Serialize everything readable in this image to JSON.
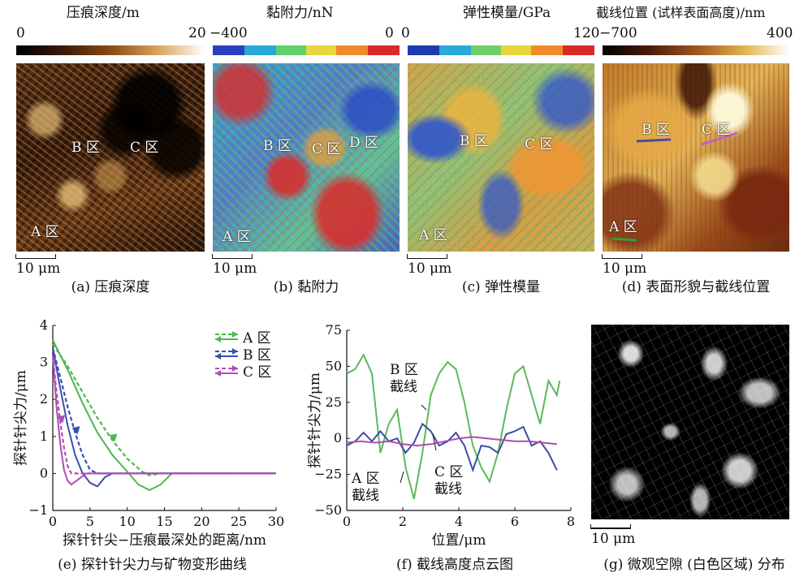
{
  "panel_a": {
    "bar_title": "压痕深度/m",
    "min": "0",
    "max": "20",
    "label_a": "A 区",
    "label_b": "B 区",
    "label_c": "C 区",
    "scale": "10 μm",
    "caption": "(a) 压痕深度",
    "colors": [
      "#000000",
      "#3a1a08",
      "#8a4a14",
      "#d9a35a",
      "#ffffff"
    ]
  },
  "panel_b": {
    "bar_title": "黏附力/nN",
    "min": "−400",
    "max": "0",
    "label_a": "A 区",
    "label_b": "B 区",
    "label_c": "C 区",
    "label_d": "D 区",
    "scale": "10 μm",
    "caption": "(b) 黏附力",
    "colors": [
      "#2a3fbf",
      "#2aa8d8",
      "#5fd16a",
      "#e8d640",
      "#f08a2a",
      "#d92a2a"
    ]
  },
  "panel_c": {
    "bar_title": "弹性模量/GPa",
    "min": "0",
    "max": "120",
    "label_a": "A 区",
    "label_b": "B 区",
    "label_c": "C 区",
    "scale": "10 μm",
    "caption": "(c) 弹性模量",
    "colors": [
      "#1f3ab0",
      "#2aa8d8",
      "#6fd06a",
      "#e8d640",
      "#f08a2a",
      "#d92a2a"
    ]
  },
  "panel_d": {
    "bar_title": "截线位置 (试样表面高度)/nm",
    "min": "−700",
    "max": "400",
    "label_a": "A 区",
    "label_b": "B 区",
    "label_c": "C 区",
    "scale": "10 μm",
    "caption": "(d) 表面形貌与截线位置",
    "colors": [
      "#000000",
      "#4a1a0a",
      "#a0521e",
      "#e0b04a",
      "#ffffff"
    ]
  },
  "panel_g": {
    "scale": "10 μm",
    "caption": "(g) 微观空隙 (白色区域) 分布"
  },
  "chart_data": [
    {
      "type": "line",
      "caption": "(e) 探针针尖力与矿物变形曲线",
      "xlabel": "探针针尖−压痕最深处的距离/nm",
      "ylabel": "探针针尖力/μm",
      "xlim": [
        0,
        30
      ],
      "ylim": [
        -1,
        4
      ],
      "xticks": [
        "0",
        "5",
        "10",
        "15",
        "20",
        "25",
        "30"
      ],
      "yticks": [
        "−1",
        "0",
        "1",
        "2",
        "3",
        "4"
      ],
      "legend_position": "top-right",
      "series": [
        {
          "name": "A 区",
          "color": "#4cb84c",
          "approach": [
            [
              0,
              3.5
            ],
            [
              2,
              2.9
            ],
            [
              4,
              2.2
            ],
            [
              6,
              1.5
            ],
            [
              8,
              0.9
            ],
            [
              10,
              0.4
            ],
            [
              12,
              0.05
            ],
            [
              13,
              -0.05
            ],
            [
              14.5,
              0
            ],
            [
              17,
              0
            ],
            [
              30,
              0
            ]
          ],
          "retract": [
            [
              0,
              3.6
            ],
            [
              2,
              2.8
            ],
            [
              4,
              1.9
            ],
            [
              6,
              1.1
            ],
            [
              8,
              0.5
            ],
            [
              10,
              0.05
            ],
            [
              11.5,
              -0.3
            ],
            [
              13,
              -0.45
            ],
            [
              14.5,
              -0.3
            ],
            [
              16,
              0
            ],
            [
              30,
              0
            ]
          ]
        },
        {
          "name": "B 区",
          "color": "#3a4fb0",
          "approach": [
            [
              0,
              3.4
            ],
            [
              1,
              2.6
            ],
            [
              2,
              1.8
            ],
            [
              3,
              1.1
            ],
            [
              4,
              0.5
            ],
            [
              5,
              0.1
            ],
            [
              6,
              0
            ],
            [
              30,
              0
            ]
          ],
          "retract": [
            [
              0,
              3.4
            ],
            [
              1,
              2.3
            ],
            [
              2,
              1.3
            ],
            [
              3,
              0.5
            ],
            [
              4,
              0.0
            ],
            [
              5,
              -0.25
            ],
            [
              6,
              -0.35
            ],
            [
              7,
              -0.1
            ],
            [
              8,
              0
            ],
            [
              30,
              0
            ]
          ]
        },
        {
          "name": "C 区",
          "color": "#b04cb8",
          "approach": [
            [
              0,
              3.2
            ],
            [
              0.5,
              2.2
            ],
            [
              1,
              1.4
            ],
            [
              1.5,
              0.7
            ],
            [
              2,
              0.2
            ],
            [
              2.5,
              0
            ],
            [
              30,
              0
            ]
          ],
          "retract": [
            [
              0,
              3.2
            ],
            [
              0.5,
              1.8
            ],
            [
              1,
              0.8
            ],
            [
              1.5,
              0.1
            ],
            [
              2,
              -0.2
            ],
            [
              2.5,
              -0.3
            ],
            [
              3.5,
              -0.15
            ],
            [
              4.5,
              0
            ],
            [
              30,
              0
            ]
          ]
        }
      ]
    },
    {
      "type": "line",
      "caption": "(f) 截线高度点云图",
      "xlabel": "位置/μm",
      "ylabel": "探针针尖力/μm",
      "xlim": [
        0,
        8
      ],
      "ylim": [
        -50,
        75
      ],
      "xticks": [
        "0",
        "2",
        "4",
        "6",
        "8"
      ],
      "yticks": [
        "−50",
        "−25",
        "0",
        "25",
        "50",
        "75"
      ],
      "annotations": [
        {
          "line1": "B 区",
          "line2": "截线"
        },
        {
          "line1": "A 区",
          "line2": "截线"
        },
        {
          "line1": "C 区",
          "line2": "截线"
        }
      ],
      "series": [
        {
          "name": "A 区",
          "color": "#5cb85c",
          "points": [
            [
              0,
              45
            ],
            [
              0.3,
              48
            ],
            [
              0.6,
              58
            ],
            [
              0.9,
              45
            ],
            [
              1.2,
              -10
            ],
            [
              1.5,
              10
            ],
            [
              1.8,
              20
            ],
            [
              2.1,
              -20
            ],
            [
              2.4,
              -42
            ],
            [
              2.7,
              -10
            ],
            [
              3.0,
              30
            ],
            [
              3.3,
              45
            ],
            [
              3.6,
              53
            ],
            [
              3.9,
              48
            ],
            [
              4.2,
              25
            ],
            [
              4.5,
              -5
            ],
            [
              4.8,
              -20
            ],
            [
              5.1,
              -30
            ],
            [
              5.4,
              -10
            ],
            [
              5.7,
              20
            ],
            [
              6.0,
              45
            ],
            [
              6.3,
              50
            ],
            [
              6.6,
              30
            ],
            [
              6.9,
              10
            ],
            [
              7.2,
              40
            ],
            [
              7.5,
              30
            ],
            [
              7.6,
              40
            ]
          ]
        },
        {
          "name": "B 区",
          "color": "#3a4fa0",
          "points": [
            [
              0,
              -5
            ],
            [
              0.3,
              -2
            ],
            [
              0.6,
              4
            ],
            [
              0.9,
              -2
            ],
            [
              1.2,
              5
            ],
            [
              1.5,
              -2
            ],
            [
              1.8,
              0
            ],
            [
              2.1,
              -10
            ],
            [
              2.4,
              -3
            ],
            [
              2.7,
              10
            ],
            [
              3.0,
              5
            ],
            [
              3.3,
              -5
            ],
            [
              3.6,
              -2
            ],
            [
              3.9,
              4
            ],
            [
              4.2,
              -5
            ],
            [
              4.5,
              -22
            ],
            [
              4.8,
              -5
            ],
            [
              5.1,
              -6
            ],
            [
              5.4,
              -10
            ],
            [
              5.7,
              3
            ],
            [
              6.0,
              5
            ],
            [
              6.3,
              8
            ],
            [
              6.6,
              -5
            ],
            [
              6.9,
              -2
            ],
            [
              7.2,
              -10
            ],
            [
              7.5,
              -22
            ]
          ]
        },
        {
          "name": "C 区",
          "color": "#b04cb0",
          "points": [
            [
              0,
              -3
            ],
            [
              0.5,
              -2
            ],
            [
              1,
              -3
            ],
            [
              1.5,
              -2
            ],
            [
              2,
              -4
            ],
            [
              2.5,
              -5
            ],
            [
              3,
              -4
            ],
            [
              3.5,
              -2
            ],
            [
              4,
              0
            ],
            [
              4.5,
              1
            ],
            [
              5,
              0
            ],
            [
              5.5,
              -1
            ],
            [
              6,
              -2
            ],
            [
              6.5,
              -2
            ],
            [
              7,
              -3
            ],
            [
              7.5,
              -4
            ]
          ]
        }
      ]
    }
  ]
}
